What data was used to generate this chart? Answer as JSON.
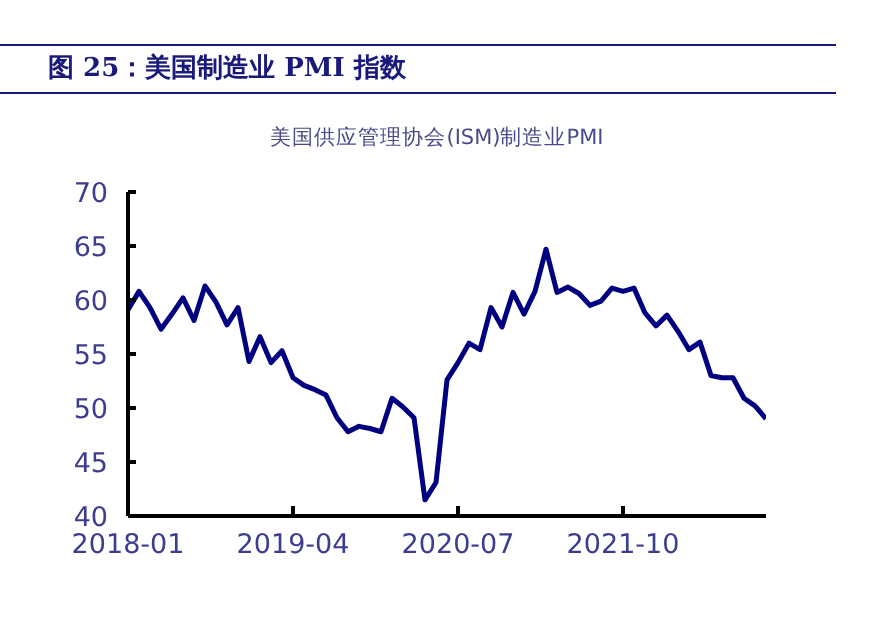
{
  "chart_data": {
    "type": "line",
    "title": "图 25：美国制造业 PMI 指数",
    "subtitle": "美国供应管理协会(ISM)制造业PMI",
    "x": [
      "2018-01",
      "2018-02",
      "2018-03",
      "2018-04",
      "2018-05",
      "2018-06",
      "2018-07",
      "2018-08",
      "2018-09",
      "2018-10",
      "2018-11",
      "2018-12",
      "2019-01",
      "2019-02",
      "2019-03",
      "2019-04",
      "2019-05",
      "2019-06",
      "2019-07",
      "2019-08",
      "2019-09",
      "2019-10",
      "2019-11",
      "2019-12",
      "2020-01",
      "2020-02",
      "2020-03",
      "2020-04",
      "2020-05",
      "2020-06",
      "2020-07",
      "2020-08",
      "2020-09",
      "2020-10",
      "2020-11",
      "2020-12",
      "2021-01",
      "2021-02",
      "2021-03",
      "2021-04",
      "2021-05",
      "2021-06",
      "2021-07",
      "2021-08",
      "2021-09",
      "2021-10",
      "2021-11",
      "2021-12",
      "2022-01",
      "2022-02",
      "2022-03",
      "2022-04",
      "2022-05",
      "2022-06",
      "2022-07",
      "2022-08",
      "2022-09",
      "2022-10",
      "2022-11"
    ],
    "series": [
      {
        "color": "#000080",
        "values": [
          59.1,
          60.8,
          59.3,
          57.3,
          58.7,
          60.2,
          58.1,
          61.3,
          59.8,
          57.7,
          59.3,
          54.3,
          56.6,
          54.2,
          55.3,
          52.8,
          52.1,
          51.7,
          51.2,
          49.1,
          47.8,
          48.3,
          48.1,
          47.8,
          50.9,
          50.1,
          49.1,
          41.5,
          43.1,
          52.6,
          54.2,
          56.0,
          55.4,
          59.3,
          57.5,
          60.7,
          58.7,
          60.8,
          64.7,
          60.7,
          61.2,
          60.6,
          59.5,
          59.9,
          61.1,
          60.8,
          61.1,
          58.8,
          57.6,
          58.6,
          57.1,
          55.4,
          56.1,
          53.0,
          52.8,
          52.8,
          50.9,
          50.2,
          49.0
        ]
      }
    ],
    "xlim": [
      "2018-01",
      "2022-11"
    ],
    "xticks": [
      "2018-01",
      "2019-04",
      "2020-07",
      "2021-10"
    ],
    "ylim": [
      40,
      70
    ],
    "yticks": [
      40,
      45,
      50,
      55,
      60,
      65,
      70
    ],
    "grid": false,
    "legend": false,
    "marker": "none",
    "line_style": "solid"
  }
}
